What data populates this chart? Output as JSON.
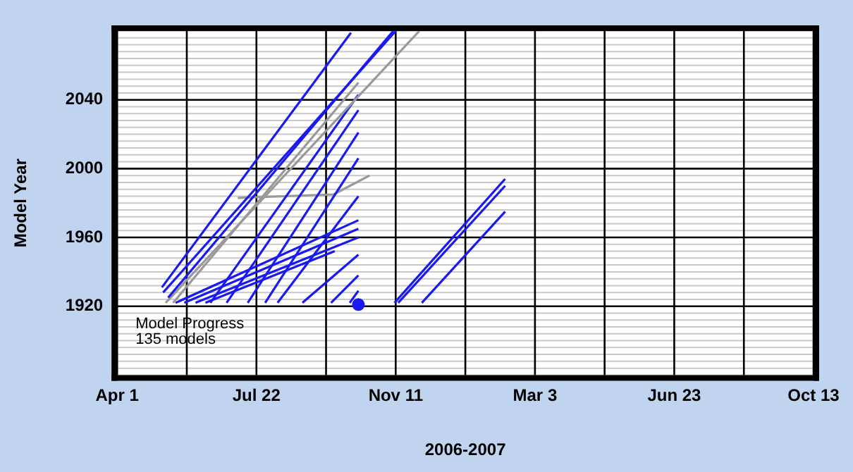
{
  "chart_data": {
    "type": "line",
    "xlabel": "2006-2007",
    "ylabel": "Model Year",
    "annotations": [
      "Model Progress",
      "135 models"
    ],
    "xlim": [
      "2006-04-01",
      "2007-10-13"
    ],
    "xticks": [
      {
        "value": "2006-04-01",
        "label": "Apr 1"
      },
      {
        "value": "2006-05-27",
        "label": null
      },
      {
        "value": "2006-07-22",
        "label": "Jul 22"
      },
      {
        "value": "2006-09-16",
        "label": null
      },
      {
        "value": "2006-11-11",
        "label": "Nov 11"
      },
      {
        "value": "2007-01-06",
        "label": null
      },
      {
        "value": "2007-03-03",
        "label": "Mar 3"
      },
      {
        "value": "2007-04-28",
        "label": null
      },
      {
        "value": "2007-06-23",
        "label": "Jun 23"
      },
      {
        "value": "2007-08-18",
        "label": null
      },
      {
        "value": "2007-10-13",
        "label": "Oct 13"
      }
    ],
    "ylim": [
      1880,
      2080
    ],
    "yticks": [
      {
        "value": 1880,
        "label": null
      },
      {
        "value": 1884,
        "label": null
      },
      {
        "value": 1888,
        "label": null
      },
      {
        "value": 1892,
        "label": null
      },
      {
        "value": 1896,
        "label": null
      },
      {
        "value": 1900,
        "label": null
      },
      {
        "value": 1904,
        "label": null
      },
      {
        "value": 1908,
        "label": null
      },
      {
        "value": 1912,
        "label": null
      },
      {
        "value": 1916,
        "label": null
      },
      1920,
      {
        "value": 1924,
        "label": null
      },
      {
        "value": 1928,
        "label": null
      },
      {
        "value": 1932,
        "label": null
      },
      {
        "value": 1936,
        "label": null
      },
      {
        "value": 1940,
        "label": null
      },
      {
        "value": 1944,
        "label": null
      },
      {
        "value": 1948,
        "label": null
      },
      {
        "value": 1952,
        "label": null
      },
      {
        "value": 1956,
        "label": null
      },
      1960,
      {
        "value": 1964,
        "label": null
      },
      {
        "value": 1968,
        "label": null
      },
      {
        "value": 1972,
        "label": null
      },
      {
        "value": 1976,
        "label": null
      },
      {
        "value": 1980,
        "label": null
      },
      {
        "value": 1984,
        "label": null
      },
      {
        "value": 1988,
        "label": null
      },
      {
        "value": 1992,
        "label": null
      },
      {
        "value": 1996,
        "label": null
      },
      2000,
      {
        "value": 2004,
        "label": null
      },
      {
        "value": 2008,
        "label": null
      },
      {
        "value": 2012,
        "label": null
      },
      {
        "value": 2016,
        "label": null
      },
      {
        "value": 2020,
        "label": null
      },
      {
        "value": 2024,
        "label": null
      },
      {
        "value": 2028,
        "label": null
      },
      {
        "value": 2032,
        "label": null
      },
      {
        "value": 2036,
        "label": null
      },
      2040,
      {
        "value": 2044,
        "label": null
      },
      {
        "value": 2048,
        "label": null
      },
      {
        "value": 2052,
        "label": null
      },
      {
        "value": 2056,
        "label": null
      },
      {
        "value": 2060,
        "label": null
      },
      {
        "value": 2064,
        "label": null
      },
      {
        "value": 2068,
        "label": null
      },
      {
        "value": 2072,
        "label": null
      },
      {
        "value": 2076,
        "label": null
      },
      {
        "value": 2080,
        "label": null
      }
    ],
    "grid": true,
    "legend": false,
    "marker": "none",
    "line_style": "solid",
    "series": [
      {
        "color": "#1a1aee",
        "x": [
          "2006-05-07",
          "2006-10-06"
        ],
        "values": [
          1931,
          2079
        ]
      },
      {
        "color": "#1a1aee",
        "x": [
          "2006-05-08",
          "2006-11-11"
        ],
        "values": [
          1928,
          2080
        ]
      },
      {
        "color": "#1a1aee",
        "x": [
          "2006-05-12",
          "2006-11-09"
        ],
        "values": [
          1925,
          2080
        ]
      },
      {
        "color": "#999999",
        "x": [
          "2006-05-10",
          "2006-11-30"
        ],
        "values": [
          1922,
          2080
        ]
      },
      {
        "color": "#999999",
        "x": [
          "2006-05-16",
          "2006-10-12"
        ],
        "values": [
          1922,
          2050
        ]
      },
      {
        "color": "#1a1aee",
        "x": [
          "2006-06-15",
          "2006-10-12"
        ],
        "values": [
          1922,
          2043
        ]
      },
      {
        "color": "#1a1aee",
        "x": [
          "2006-06-28",
          "2006-10-12"
        ],
        "values": [
          1922,
          2034
        ]
      },
      {
        "color": "#1a1aee",
        "x": [
          "2006-07-15",
          "2006-10-12"
        ],
        "values": [
          1922,
          2021
        ]
      },
      {
        "color": "#1a1aee",
        "x": [
          "2006-07-29",
          "2006-10-12"
        ],
        "values": [
          1922,
          2006
        ]
      },
      {
        "color": "#1a1aee",
        "x": [
          "2006-08-08",
          "2006-10-12"
        ],
        "values": [
          1922,
          1984
        ]
      },
      {
        "color": "#1a1aee",
        "x": [
          "2006-05-18",
          "2006-10-12"
        ],
        "values": [
          1922,
          1970
        ]
      },
      {
        "color": "#1a1aee",
        "x": [
          "2006-05-25",
          "2006-10-12"
        ],
        "values": [
          1922,
          1965
        ]
      },
      {
        "color": "#1a1aee",
        "x": [
          "2006-06-03",
          "2006-10-12"
        ],
        "values": [
          1922,
          1960
        ]
      },
      {
        "color": "#1a1aee",
        "x": [
          "2006-06-11",
          "2006-09-23"
        ],
        "values": [
          1922,
          1952
        ]
      },
      {
        "color": "#999999",
        "x": [
          "2006-07-07",
          "2006-09-22",
          "2006-10-21"
        ],
        "values": [
          1983,
          1985,
          1996
        ]
      },
      {
        "color": "#1a1aee",
        "x": [
          "2006-08-28",
          "2006-10-12"
        ],
        "values": [
          1922,
          1950
        ]
      },
      {
        "color": "#1a1aee",
        "x": [
          "2006-09-20",
          "2006-10-12"
        ],
        "values": [
          1922,
          1938
        ]
      },
      {
        "color": "#1a1aee",
        "x": [
          "2006-10-05",
          "2006-10-12"
        ],
        "values": [
          1922,
          1929
        ]
      },
      {
        "type": "scatter",
        "marker": "circle",
        "color": "#1a1aee",
        "x": [
          "2006-10-12"
        ],
        "values": [
          1921
        ]
      },
      {
        "color": "#1a1aee",
        "x": [
          "2006-11-10",
          "2007-02-07"
        ],
        "values": [
          1922,
          1994
        ]
      },
      {
        "color": "#1a1aee",
        "x": [
          "2006-11-13",
          "2007-02-07"
        ],
        "values": [
          1922,
          1990
        ]
      },
      {
        "color": "#1a1aee",
        "x": [
          "2006-12-02",
          "2007-02-07"
        ],
        "values": [
          1922,
          1975
        ]
      }
    ]
  }
}
